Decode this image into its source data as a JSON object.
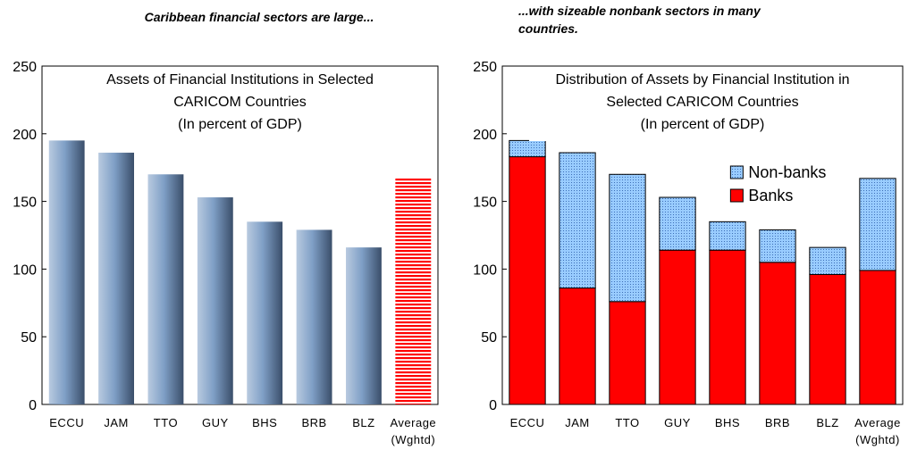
{
  "chart_data": [
    {
      "type": "bar",
      "title": "Caribbean financial sectors are large...",
      "subtitle": "Assets of Financial Institutions in Selected\nCARICOM Countries\n(In percent of GDP)",
      "categories": [
        "ECCU",
        "JAM",
        "TTO",
        "GUY",
        "BHS",
        "BRB",
        "BLZ",
        "Average\n(Wghtd)"
      ],
      "values": [
        195,
        186,
        170,
        153,
        135,
        129,
        116,
        167
      ],
      "color": "#7f9fc6",
      "last_color": "#ff0000",
      "ylim": [
        0,
        250
      ],
      "yticks": [
        0,
        50,
        100,
        150,
        200,
        250
      ],
      "grid": false
    },
    {
      "type": "stacked_bar",
      "title": "...with sizeable nonbank sectors in many\ncountries.",
      "subtitle": "Distribution of Assets by Financial Institution in\nSelected CARICOM Countries\n(In percent of GDP)",
      "categories": [
        "ECCU",
        "JAM",
        "TTO",
        "GUY",
        "BHS",
        "BRB",
        "BLZ",
        "Average\n(Wghtd)"
      ],
      "series": [
        {
          "name": "Banks",
          "color": "#ff0000",
          "values": [
            183,
            86,
            76,
            114,
            114,
            105,
            96,
            99
          ]
        },
        {
          "name": "Non-banks",
          "color": "#99ccff",
          "values": [
            12,
            100,
            94,
            39,
            21,
            24,
            20,
            68
          ]
        }
      ],
      "ylim": [
        0,
        250
      ],
      "yticks": [
        0,
        50,
        100,
        150,
        200,
        250
      ],
      "grid": false,
      "legend": "upper right"
    }
  ]
}
